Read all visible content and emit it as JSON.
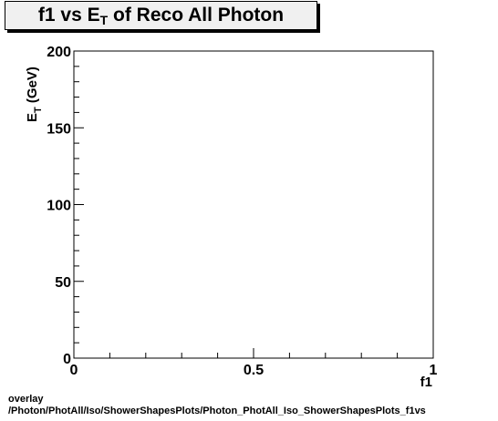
{
  "chart_data": {
    "type": "scatter",
    "title_main": "f1 vs E",
    "title_sub": "T",
    "title_rest": " of Reco All Photon",
    "xlabel": "f1",
    "ylabel_main": "E",
    "ylabel_sub": "T",
    "ylabel_rest": " (GeV)",
    "xlim": [
      0,
      1
    ],
    "ylim": [
      0,
      200
    ],
    "x_ticks": [
      0,
      0.5,
      1
    ],
    "x_tick_labels": [
      "0",
      "0.5",
      "1"
    ],
    "y_ticks": [
      0,
      50,
      100,
      150,
      200
    ],
    "y_tick_labels": [
      "0",
      "50",
      "100",
      "150",
      "200"
    ],
    "series": [],
    "grid": false
  },
  "footer": {
    "line1": "overlay",
    "line2": "/Photon/PhotAll/Iso/ShowerShapesPlots/Photon_PhotAll_Iso_ShowerShapesPlots_f1vs"
  }
}
